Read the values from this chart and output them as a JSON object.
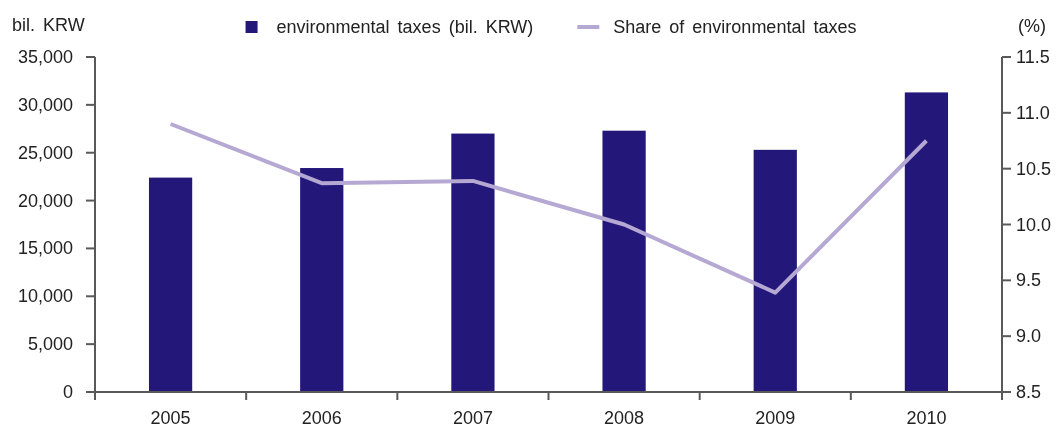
{
  "chart_data": {
    "type": "bar",
    "categories": [
      "2005",
      "2006",
      "2007",
      "2008",
      "2009",
      "2010"
    ],
    "ylabel": "bil. KRW",
    "y2label": "(%)",
    "series": [
      {
        "name": "environmental taxes (bil. KRW)",
        "color": "#231779",
        "values": [
          22400,
          23400,
          27000,
          27300,
          25300,
          31300
        ]
      },
      {
        "name": "Share of environmental taxes",
        "type": "line",
        "axis": "y2",
        "color": "#b5a9d3",
        "values": [
          10.9,
          10.37,
          10.39,
          10.0,
          9.39,
          10.75
        ]
      }
    ],
    "ylim": [
      0,
      35000
    ],
    "yticks": [
      0,
      {
        "value": 5000,
        "label": "5,000"
      },
      {
        "value": 10000,
        "label": "10,000"
      },
      {
        "value": 15000,
        "label": "15,000"
      },
      {
        "value": 20000,
        "label": "20,000"
      },
      {
        "value": 25000,
        "label": "25,000"
      },
      {
        "value": 30000,
        "label": "30,000"
      },
      {
        "value": 35000,
        "label": "35,000"
      }
    ],
    "y2lim": [
      8.5,
      11.5
    ],
    "y2ticks": [
      8.5,
      {
        "value": 9,
        "label": "9.0"
      },
      9.5,
      {
        "value": 10,
        "label": "10.0"
      },
      10.5,
      {
        "value": 11,
        "label": "11.0"
      },
      11.5
    ],
    "legend": "top"
  }
}
